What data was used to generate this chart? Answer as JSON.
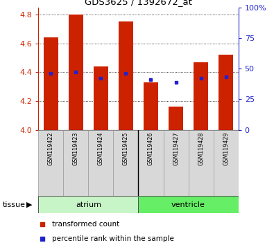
{
  "title": "GDS3625 / 1392672_at",
  "samples": [
    "GSM119422",
    "GSM119423",
    "GSM119424",
    "GSM119425",
    "GSM119426",
    "GSM119427",
    "GSM119428",
    "GSM119429"
  ],
  "transformed_count": [
    4.64,
    4.8,
    4.44,
    4.75,
    4.33,
    4.16,
    4.47,
    4.52
  ],
  "percentile_rank": [
    4.39,
    4.4,
    4.36,
    4.39,
    4.35,
    4.33,
    4.36,
    4.37
  ],
  "base": 4.0,
  "ylim_left": [
    4.0,
    4.85
  ],
  "ylim_right": [
    0,
    100
  ],
  "yticks_left": [
    4.0,
    4.2,
    4.4,
    4.6,
    4.8
  ],
  "yticks_right": [
    0,
    25,
    50,
    75,
    100
  ],
  "ytick_right_labels": [
    "0",
    "25",
    "50",
    "75",
    "100%"
  ],
  "groups": [
    {
      "name": "atrium",
      "indices": [
        0,
        1,
        2,
        3
      ],
      "color": "#c8f5c8"
    },
    {
      "name": "ventricle",
      "indices": [
        4,
        5,
        6,
        7
      ],
      "color": "#66ee66"
    }
  ],
  "bar_color_red": "#cc2200",
  "bar_color_blue": "#2222cc",
  "left_tick_color": "#cc2200",
  "right_tick_color": "#2222cc",
  "label_tissue": "tissue",
  "legend_items": [
    "transformed count",
    "percentile rank within the sample"
  ],
  "bar_width": 0.6,
  "tick_fontsize": 8,
  "label_fontsize": 7.5
}
